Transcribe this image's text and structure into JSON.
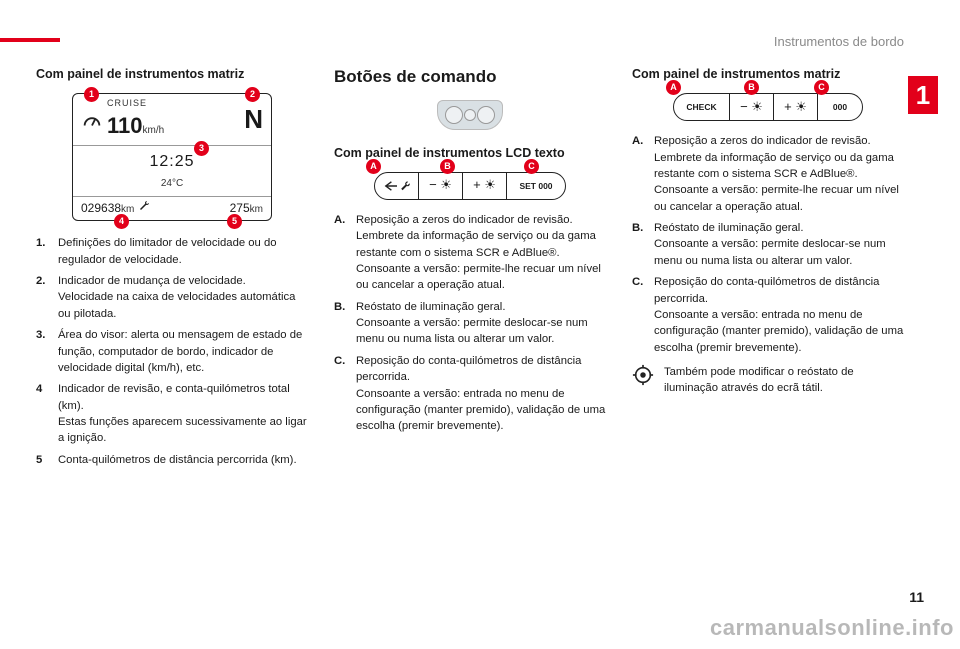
{
  "colors": {
    "accent": "#e2001a",
    "text": "#1a1a1a",
    "muted": "#8a8a8a",
    "panel_border": "#222222",
    "bg": "#ffffff",
    "watermark": "rgba(0,0,0,0.28)"
  },
  "header": {
    "category": "Instrumentos de bordo"
  },
  "chapter_number": "1",
  "col1": {
    "subtitle": "Com painel de instrumentos matriz",
    "matrix": {
      "mode_label": "CRUISE",
      "speed_value": "110",
      "speed_unit": "km/h",
      "gear": "N",
      "clock": "12:25",
      "temperature": "24°C",
      "odometer": "029638",
      "odometer_unit": "km",
      "trip": "275",
      "trip_unit": "km",
      "markers": [
        "1",
        "2",
        "3",
        "4",
        "5"
      ]
    },
    "defs": [
      {
        "n": "1.",
        "t": "Definições do limitador de velocidade ou do regulador de velocidade."
      },
      {
        "n": "2.",
        "t": "Indicador de mudança de velocidade.\nVelocidade na caixa de velocidades automática ou pilotada."
      },
      {
        "n": "3.",
        "t": "Área do visor: alerta ou mensagem de estado de função, computador de bordo, indicador de velocidade digital (km/h), etc."
      },
      {
        "n": "4",
        "t": "Indicador de revisão, e conta-quilómetros total (km).\nEstas funções aparecem sucessivamente ao ligar a ignição."
      },
      {
        "n": "5",
        "t": "Conta-quilómetros de distância percorrida (km)."
      }
    ]
  },
  "col2": {
    "section_title": "Botões de comando",
    "subtitle": "Com painel de instrumentos LCD texto",
    "strip": {
      "segments": [
        {
          "icon": "return-wrench",
          "label": ""
        },
        {
          "icon": "minus-sun",
          "label": "− ☀"
        },
        {
          "icon": "plus-sun",
          "label": "+ ☀"
        },
        {
          "icon": "text",
          "label": "SET 000"
        }
      ],
      "markers": [
        "A",
        "B",
        "C"
      ],
      "seg_widths": [
        44,
        44,
        44,
        58
      ]
    },
    "defs": [
      {
        "n": "A.",
        "t": "Reposição a zeros do indicador de revisão.\nLembrete da informação de serviço ou da gama restante com o sistema SCR e AdBlue®.\nConsoante a versão: permite-lhe recuar um nível ou cancelar a operação atual."
      },
      {
        "n": "B.",
        "t": "Reóstato de iluminação geral.\nConsoante a versão: permite deslocar-se num menu ou numa lista ou alterar um valor."
      },
      {
        "n": "C.",
        "t": "Reposição do conta-quilómetros de distância percorrida.\nConsoante a versão: entrada no menu de configuração (manter premido), validação de uma escolha (premir brevemente)."
      }
    ]
  },
  "col3": {
    "subtitle": "Com painel de instrumentos matriz",
    "strip": {
      "segments": [
        {
          "icon": "text",
          "label": "CHECK"
        },
        {
          "icon": "minus-sun",
          "label": "− ☀"
        },
        {
          "icon": "plus-sun",
          "label": "+ ☀"
        },
        {
          "icon": "text",
          "label": "000"
        }
      ],
      "markers": [
        "A",
        "B",
        "C"
      ],
      "seg_widths": [
        56,
        44,
        44,
        44
      ]
    },
    "defs": [
      {
        "n": "A.",
        "t": "Reposição a zeros do indicador de revisão.\nLembrete da informação de serviço ou da gama restante com o sistema SCR e AdBlue®.\nConsoante a versão: permite-lhe recuar um nível ou cancelar a operação atual."
      },
      {
        "n": "B.",
        "t": "Reóstato de iluminação geral.\nConsoante a versão: permite deslocar-se num menu ou numa lista ou alterar um valor."
      },
      {
        "n": "C.",
        "t": "Reposição do conta-quilómetros de distância percorrida.\nConsoante a versão: entrada no menu de configuração (manter premido), validação de uma escolha (premir brevemente)."
      }
    ],
    "note": "Também pode modificar o reóstato de iluminação através do ecrã tátil."
  },
  "page_number": "11",
  "watermark": "carmanualsonline.info"
}
